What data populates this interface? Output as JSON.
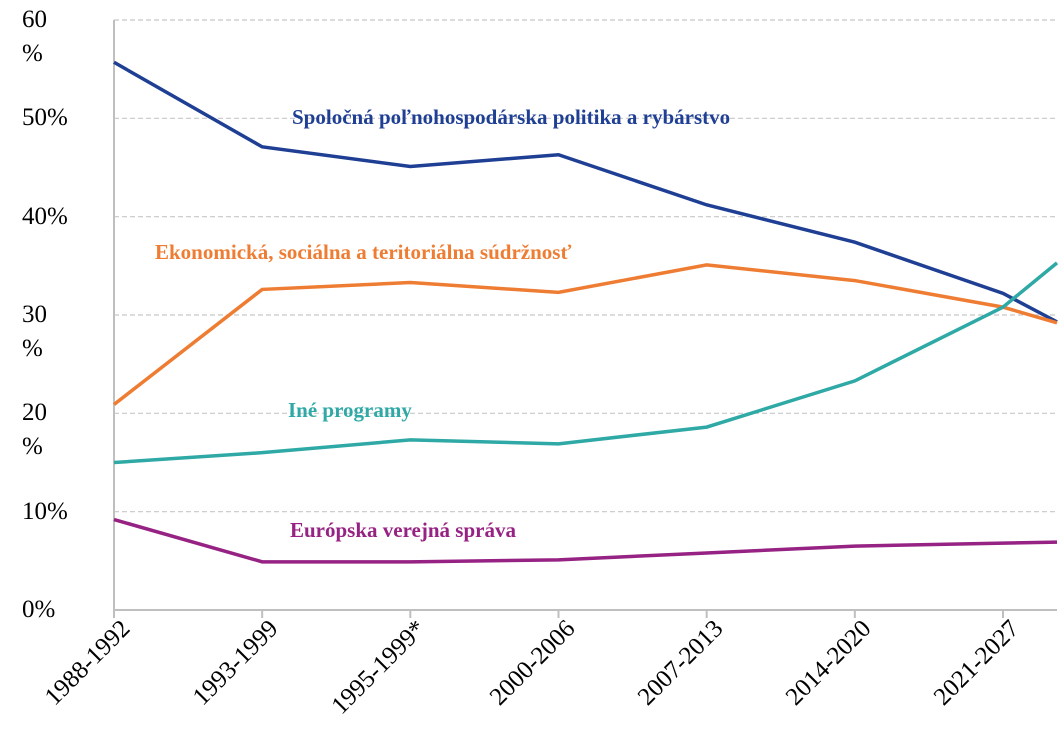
{
  "chart_data": {
    "type": "line",
    "categories": [
      "1988-1992",
      "1993-1999",
      "1995-1999*",
      "2000-2006",
      "2007-2013",
      "2014-2020",
      "2021-2027",
      null
    ],
    "series": [
      {
        "name": "Spoločná poľnohospodárska politika a rybárstvo",
        "color": "#1f3f94",
        "values": [
          55.7,
          47.1,
          45.1,
          46.3,
          41.2,
          37.4,
          32.2,
          29.3
        ]
      },
      {
        "name": "Ekonomická, sociálna a teritoriálna súdržnosť",
        "color": "#ee7d33",
        "values": [
          20.9,
          32.6,
          33.3,
          32.3,
          35.1,
          33.5,
          30.8,
          29.2
        ]
      },
      {
        "name": "Iné programy",
        "color": "#2fa9a6",
        "values": [
          15.0,
          16.0,
          17.3,
          16.9,
          18.6,
          23.3,
          30.8,
          35.3
        ]
      },
      {
        "name": "Európska verejná správa",
        "color": "#962283",
        "values": [
          9.2,
          4.9,
          4.9,
          5.1,
          5.8,
          6.5,
          6.8,
          6.9
        ]
      }
    ],
    "ylim": [
      0,
      60
    ],
    "yticks": [
      {
        "value": 0,
        "label": "0%"
      },
      {
        "value": 10,
        "label": "10%"
      },
      {
        "value": 20,
        "label": "20 %"
      },
      {
        "value": 30,
        "label": "30 %"
      },
      {
        "value": 40,
        "label": "40%"
      },
      {
        "value": 50,
        "label": "50%"
      },
      {
        "value": 60,
        "label": "60 %"
      }
    ],
    "grid": true
  }
}
